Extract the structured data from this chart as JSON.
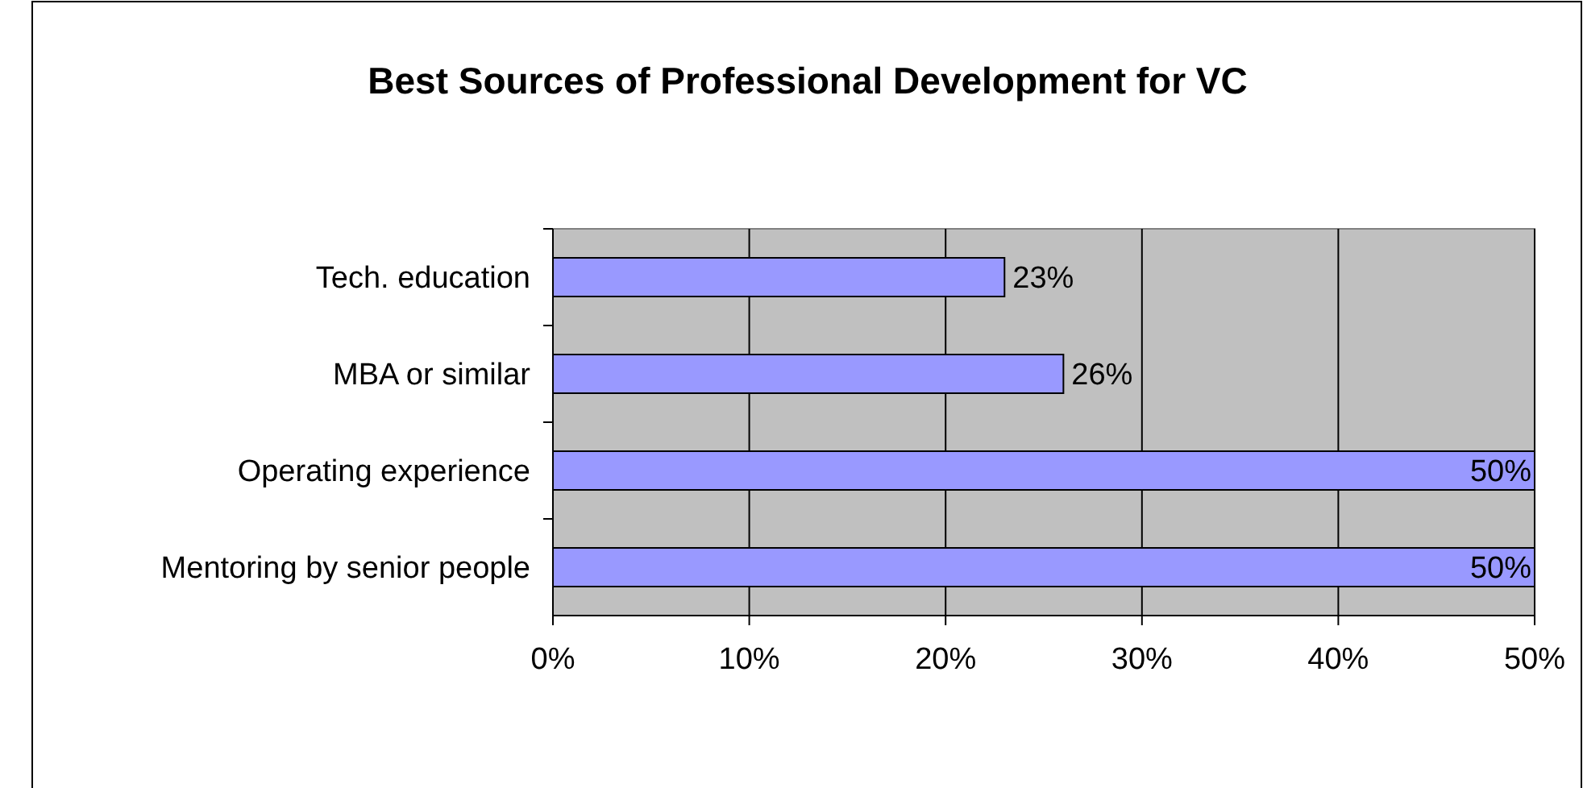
{
  "chart_data": {
    "type": "bar",
    "orientation": "horizontal",
    "title": "Best Sources of Professional Development for VC",
    "categories": [
      "Tech. education",
      "MBA or similar",
      "Operating experience",
      "Mentoring by senior people"
    ],
    "values": [
      23,
      26,
      50,
      50
    ],
    "color": "#9999ff",
    "value_labels": [
      "23%",
      "26%",
      "50%",
      "50%"
    ],
    "xlim": [
      0,
      50
    ],
    "xticks": [
      {
        "value": 0,
        "label": "0%"
      },
      {
        "value": 10,
        "label": "10%"
      },
      {
        "value": 20,
        "label": "20%"
      },
      {
        "value": 30,
        "label": "30%"
      },
      {
        "value": 40,
        "label": "40%"
      },
      {
        "value": 50,
        "label": "50%"
      }
    ],
    "grid": "x"
  }
}
